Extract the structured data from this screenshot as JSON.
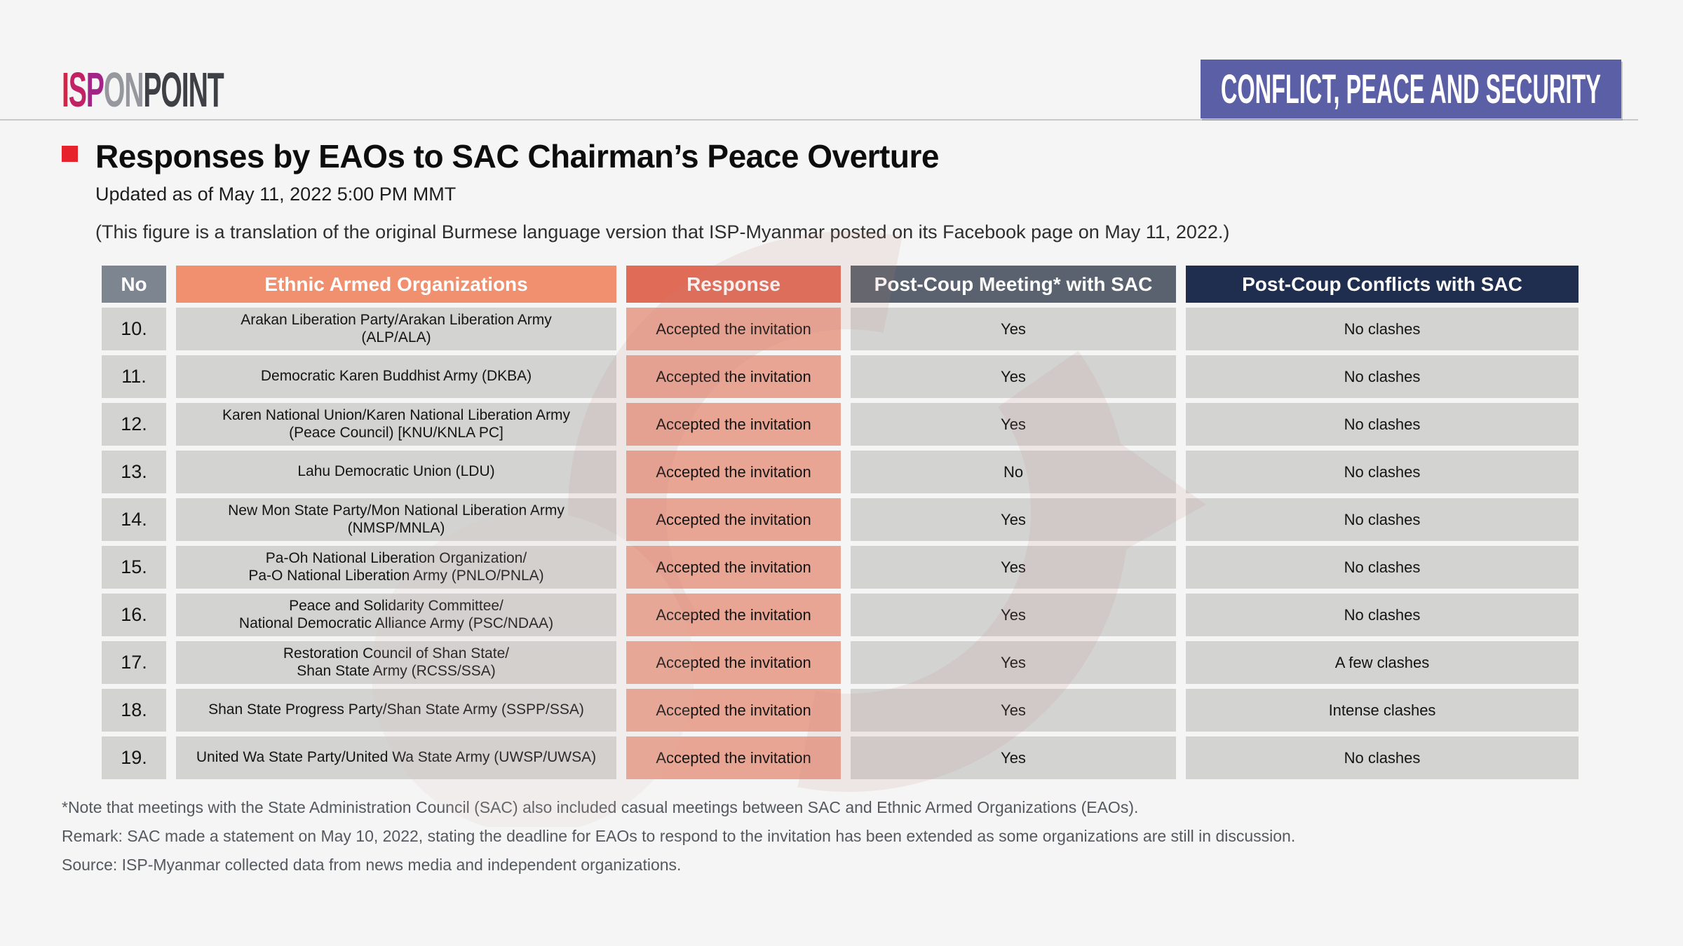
{
  "brand": {
    "segments": [
      {
        "text": "I",
        "color": "#da2148"
      },
      {
        "text": "S",
        "color": "#c32166"
      },
      {
        "text": "P",
        "color": "#a32487"
      },
      {
        "text": "ON",
        "color": "#97989d"
      },
      {
        "text": "POINT",
        "color": "#3e4045"
      }
    ]
  },
  "banner": {
    "label": "CONFLICT, PEACE AND SECURITY",
    "bg_color": "#5b5fa6"
  },
  "header": {
    "title": "Responses by EAOs to SAC Chairman’s Peace Overture",
    "updated": "Updated as of May 11, 2022 5:00 PM MMT",
    "translation_note": "(This figure is a translation of the original Burmese language version that ISP-Myanmar posted on its Facebook page on May 11, 2022.)"
  },
  "table": {
    "columns": {
      "no": "No",
      "org": "Ethnic Armed Organizations",
      "response": "Response",
      "meeting": "Post-Coup Meeting* with SAC",
      "conflicts": "Post-Coup Conflicts with SAC"
    },
    "header_colors": {
      "no": "#7d8690",
      "org": "#f0906f",
      "response": "#e06b57",
      "meeting": "#59626e",
      "conflicts": "#1f2d4e"
    },
    "rows": [
      {
        "no": "10.",
        "org": "Arakan Liberation Party/Arakan Liberation Army\n(ALP/ALA)",
        "response": "Accepted the invitation",
        "meeting": "Yes",
        "conflicts": "No clashes"
      },
      {
        "no": "11.",
        "org": "Democratic Karen Buddhist Army (DKBA)",
        "response": "Accepted the invitation",
        "meeting": "Yes",
        "conflicts": "No clashes"
      },
      {
        "no": "12.",
        "org": "Karen National Union/Karen National Liberation Army\n(Peace Council) [KNU/KNLA PC]",
        "response": "Accepted the invitation",
        "meeting": "Yes",
        "conflicts": "No clashes"
      },
      {
        "no": "13.",
        "org": "Lahu Democratic Union (LDU)",
        "response": "Accepted the invitation",
        "meeting": "No",
        "conflicts": "No clashes"
      },
      {
        "no": "14.",
        "org": "New Mon State Party/Mon National Liberation Army\n(NMSP/MNLA)",
        "response": "Accepted the invitation",
        "meeting": "Yes",
        "conflicts": "No clashes"
      },
      {
        "no": "15.",
        "org": "Pa-Oh National Liberation Organization/\nPa-O National Liberation Army (PNLO/PNLA)",
        "response": "Accepted the invitation",
        "meeting": "Yes",
        "conflicts": "No clashes"
      },
      {
        "no": "16.",
        "org": "Peace and Solidarity Committee/\nNational Democratic Alliance Army (PSC/NDAA)",
        "response": "Accepted the invitation",
        "meeting": "Yes",
        "conflicts": "No clashes"
      },
      {
        "no": "17.",
        "org": "Restoration Council of Shan State/\nShan State Army (RCSS/SSA)",
        "response": "Accepted the invitation",
        "meeting": "Yes",
        "conflicts": "A few clashes"
      },
      {
        "no": "18.",
        "org": "Shan State Progress Party/Shan State Army (SSPP/SSA)",
        "response": "Accepted the invitation",
        "meeting": "Yes",
        "conflicts": "Intense clashes"
      },
      {
        "no": "19.",
        "org": "United Wa State Party/United Wa State Army (UWSP/UWSA)",
        "response": "Accepted the invitation",
        "meeting": "Yes",
        "conflicts": "No clashes"
      }
    ]
  },
  "footer": {
    "note": "*Note that meetings with the State Administration Council (SAC) also included casual meetings between SAC and Ethnic Armed Organizations (EAOs).",
    "remark": "Remark: SAC made a statement on May 10, 2022, stating the deadline for EAOs to respond to the invitation has been extended as some organizations are still in discussion.",
    "source": "Source: ISP-Myanmar collected data from news media and independent organizations."
  }
}
